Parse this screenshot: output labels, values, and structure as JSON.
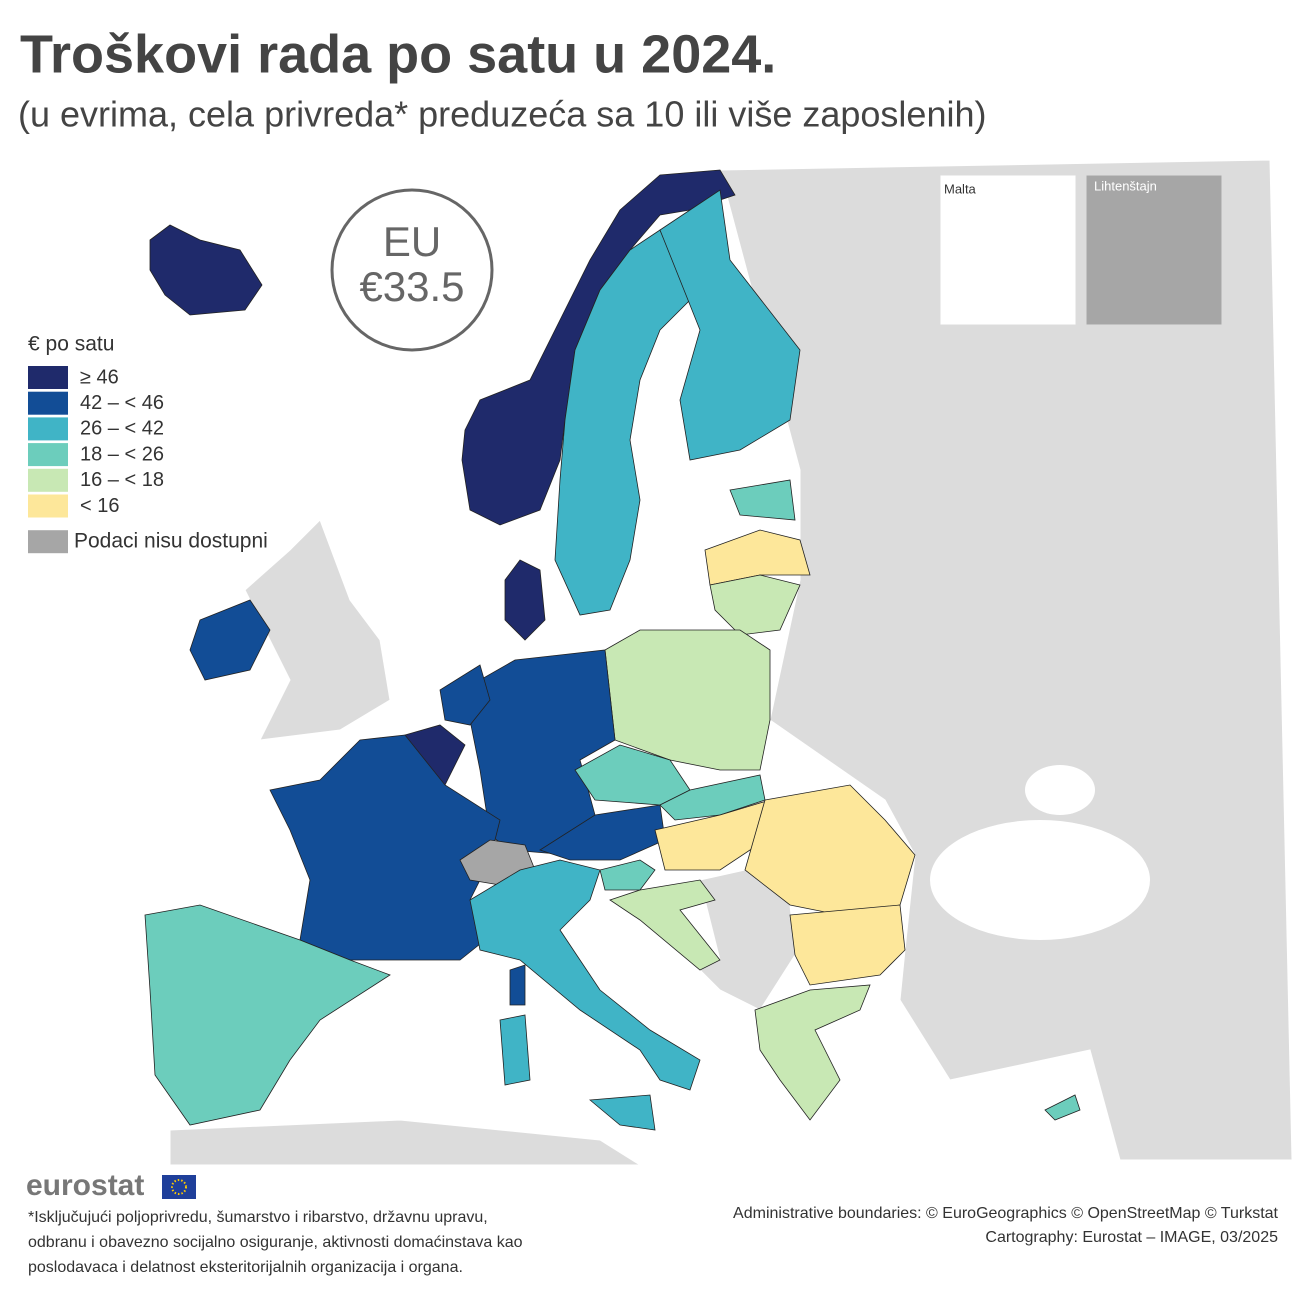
{
  "title": "Troškovi rada po satu u 2024.",
  "subtitle": "(u evrima, cela privreda* preduzeća sa 10 ili više zaposlenih)",
  "eu_badge": {
    "label": "EU",
    "value": "€33.5"
  },
  "legend": {
    "title": "€ po satu",
    "items": [
      {
        "label": "≥ 46",
        "color": "#1f2a6b"
      },
      {
        "label": "42 – < 46",
        "color": "#124d96"
      },
      {
        "label": "26 – < 42",
        "color": "#40b4c6"
      },
      {
        "label": "18 – < 26",
        "color": "#6ccdbc"
      },
      {
        "label": "16 – < 18",
        "color": "#c8e8b4"
      },
      {
        "label": "< 16",
        "color": "#fde79a"
      },
      {
        "label": "Podaci nisu dostupni",
        "color": "#a6a6a6"
      }
    ]
  },
  "insets": [
    "Malta",
    "Lihtenštajn"
  ],
  "logo": "eurostat",
  "footnote": [
    "*Isključujući poljoprivredu, šumarstvo i ribarstvo, državnu upravu,",
    "odbranu i obavezno socijalno osiguranje, aktivnosti domaćinstava kao",
    "poslodavaca i delatnost eksteritorijalnih organizacija i organa."
  ],
  "credits": [
    "Administrative boundaries: © EuroGeographics © OpenStreetMap © Turkstat",
    "Cartography: Eurostat – IMAGE, 03/2025"
  ]
}
